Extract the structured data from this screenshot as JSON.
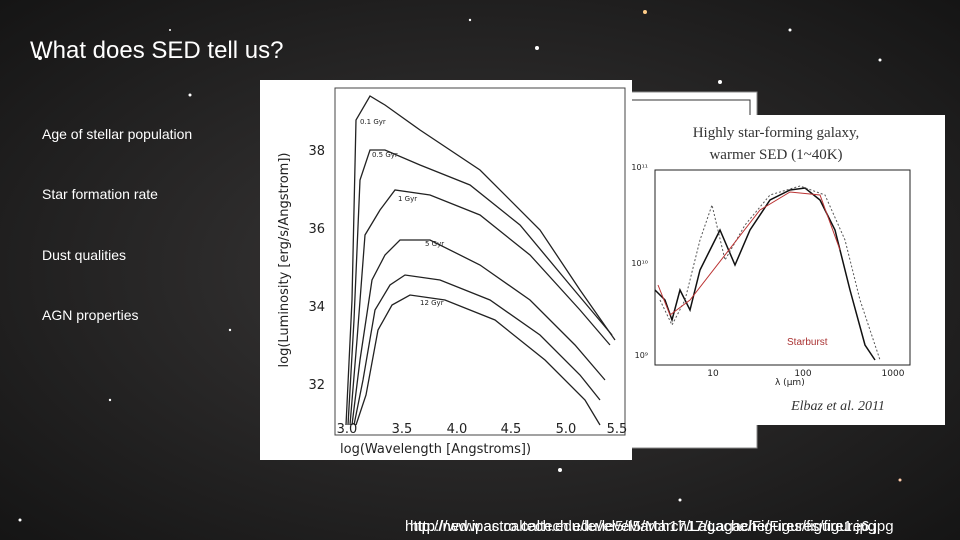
{
  "slide": {
    "title": "What does SED tell us?",
    "bullets": [
      "Age of stellar population",
      "Star formation rate",
      "Dust qualities",
      "AGN properties"
    ],
    "left_figure": {
      "y_axis_label": "log(Luminosity [erg/s/Angstrom])",
      "x_axis_label": "log(Wavelength [Angstroms])",
      "y_ticks": [
        "38",
        "36",
        "34",
        "32"
      ],
      "x_ticks": [
        "3.0",
        "3.5",
        "4.0",
        "4.5",
        "5.0",
        "5.5"
      ],
      "curve_labels": [
        "0.1 Gyr",
        "0.5 Gyr",
        "1 Gyr",
        "5 Gyr",
        "12 Gyr"
      ]
    },
    "right_figure": {
      "title_lines": [
        "Highly star-forming galaxy,",
        "warmer SED (1~40K)"
      ],
      "y_ticks": [
        "10¹¹",
        "10¹⁰",
        "10⁹"
      ],
      "x_ticks": [
        "10",
        "100",
        "1000"
      ],
      "x_axis_label": "λ (μm)",
      "legend": "Starburst",
      "credit": "Elbaz et al. 2011"
    },
    "sources": [
      "http://ned.ipac.caltech.edu/level5/March17/Lagache/Figures/figure1.jpg",
      "http://www.astro.caltech.edu/level5/March17/Lagache/Figures/figure6.jpg"
    ]
  }
}
